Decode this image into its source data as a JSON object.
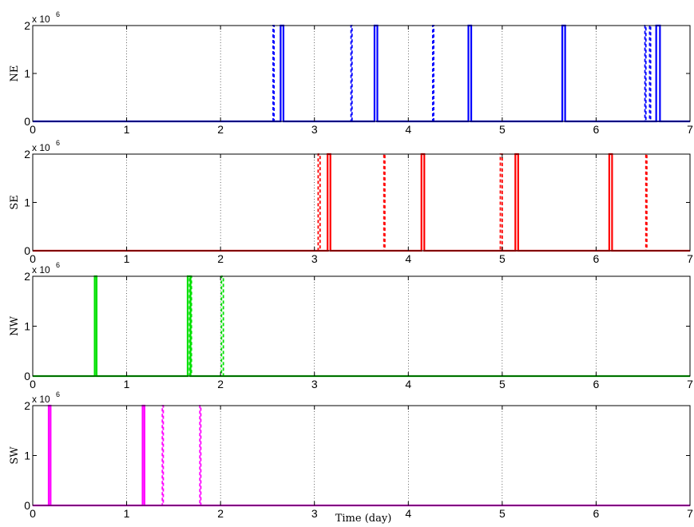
{
  "chart_data": [
    {
      "type": "line",
      "ylabel": "NE",
      "color": "#0000ff",
      "y_exponent_base": "x 10",
      "y_exponent_power": "6",
      "xlim": [
        0,
        7
      ],
      "ylim": [
        0,
        2000000
      ],
      "xticks": [
        "0",
        "1",
        "2",
        "3",
        "4",
        "5",
        "6",
        "7"
      ],
      "yticks": [
        "0",
        "1",
        "2"
      ],
      "grid": "x-dotted",
      "series": [
        {
          "style": "solid",
          "pulses": [
            [
              2.64,
              2.67
            ],
            [
              3.64,
              3.67
            ],
            [
              4.64,
              4.67
            ],
            [
              5.64,
              5.67
            ],
            [
              6.64,
              6.68
            ]
          ]
        },
        {
          "style": "dashed",
          "pulses": [
            [
              2.56,
              2.57
            ],
            [
              3.39,
              3.4
            ],
            [
              4.26,
              4.27
            ],
            [
              6.52,
              6.53
            ],
            [
              6.57,
              6.58
            ]
          ]
        }
      ]
    },
    {
      "type": "line",
      "ylabel": "SE",
      "color": "#ff0000",
      "y_exponent_base": "x 10",
      "y_exponent_power": "6",
      "xlim": [
        0,
        7
      ],
      "ylim": [
        0,
        2000000
      ],
      "xticks": [
        "0",
        "1",
        "2",
        "3",
        "4",
        "5",
        "6",
        "7"
      ],
      "yticks": [
        "0",
        "1",
        "2"
      ],
      "grid": "x-dotted",
      "series": [
        {
          "style": "solid",
          "pulses": [
            [
              3.14,
              3.17
            ],
            [
              4.14,
              4.17
            ],
            [
              5.14,
              5.17
            ],
            [
              6.14,
              6.17
            ]
          ]
        },
        {
          "style": "dashed",
          "pulses": [
            [
              3.04,
              3.06
            ],
            [
              3.74,
              3.75
            ],
            [
              4.98,
              5.0
            ],
            [
              6.53,
              6.54
            ]
          ]
        }
      ]
    },
    {
      "type": "line",
      "ylabel": "NW",
      "color": "#00e000",
      "y_exponent_base": "x 10",
      "y_exponent_power": "6",
      "xlim": [
        0,
        7
      ],
      "ylim": [
        0,
        2000000
      ],
      "xticks": [
        "0",
        "1",
        "2",
        "3",
        "4",
        "5",
        "6",
        "7"
      ],
      "yticks": [
        "0",
        "1",
        "2"
      ],
      "grid": "x-dotted",
      "series": [
        {
          "style": "solid",
          "pulses": [
            [
              0.66,
              0.68
            ],
            [
              1.65,
              1.68
            ]
          ]
        },
        {
          "style": "dashed",
          "pulses": [
            [
              1.67,
              1.69
            ],
            [
              2.01,
              2.03
            ]
          ]
        }
      ]
    },
    {
      "type": "line",
      "ylabel": "SW",
      "xlabel": "Time (day)",
      "color": "#ff00ff",
      "y_exponent_base": "x 10",
      "y_exponent_power": "6",
      "xlim": [
        0,
        7
      ],
      "ylim": [
        0,
        2000000
      ],
      "xticks": [
        "0",
        "1",
        "2",
        "3",
        "4",
        "5",
        "6",
        "7"
      ],
      "yticks": [
        "0",
        "1",
        "2"
      ],
      "grid": "x-dotted",
      "series": [
        {
          "style": "solid",
          "pulses": [
            [
              0.17,
              0.19
            ],
            [
              1.17,
              1.19
            ]
          ]
        },
        {
          "style": "dashed",
          "pulses": [
            [
              1.38,
              1.39
            ],
            [
              1.78,
              1.79
            ]
          ]
        }
      ]
    }
  ]
}
